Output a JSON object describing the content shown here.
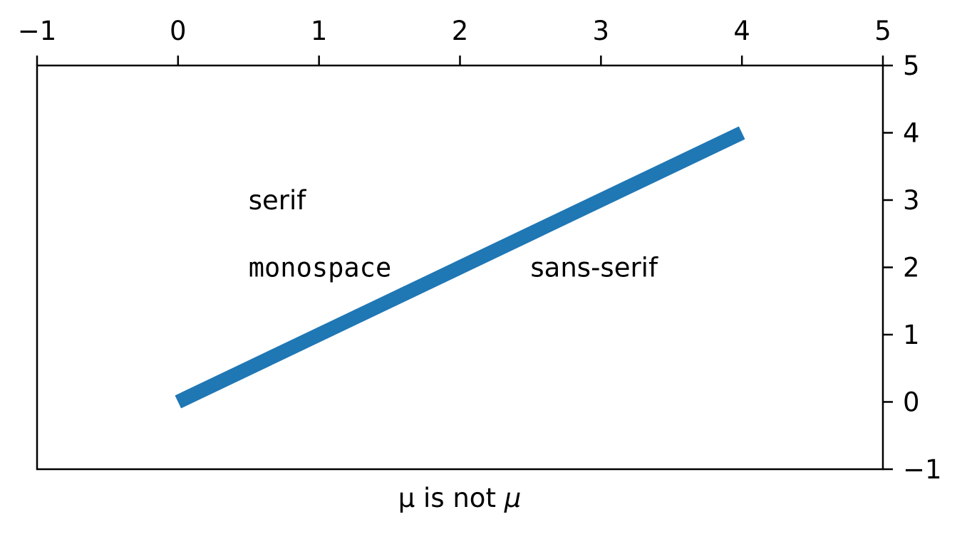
{
  "chart_data": {
    "type": "line",
    "title": "",
    "xlabel_plain": "μ is not ",
    "xlabel_math": "μ",
    "ylabel": "",
    "xlim": [
      -1,
      5
    ],
    "ylim": [
      -1,
      5
    ],
    "x_axis_position": "top",
    "y_axis_position": "right",
    "grid": false,
    "xticks": [
      "−1",
      "0",
      "1",
      "2",
      "3",
      "4",
      "5"
    ],
    "xtick_values": [
      -1,
      0,
      1,
      2,
      3,
      4,
      5
    ],
    "yticks": [
      "−1",
      "0",
      "1",
      "2",
      "3",
      "4",
      "5"
    ],
    "ytick_values": [
      -1,
      0,
      1,
      2,
      3,
      4,
      5
    ],
    "series": [
      {
        "x": [
          0,
          4
        ],
        "y": [
          0,
          4
        ],
        "color": "#1f77b4"
      }
    ],
    "annotations": [
      {
        "text": "serif",
        "x": 0.5,
        "y": 3,
        "font": "serif"
      },
      {
        "text": "monospace",
        "x": 0.5,
        "y": 2,
        "font": "monospace"
      },
      {
        "text": "sans-serif",
        "x": 2.5,
        "y": 2,
        "font": "sans-serif"
      }
    ]
  }
}
